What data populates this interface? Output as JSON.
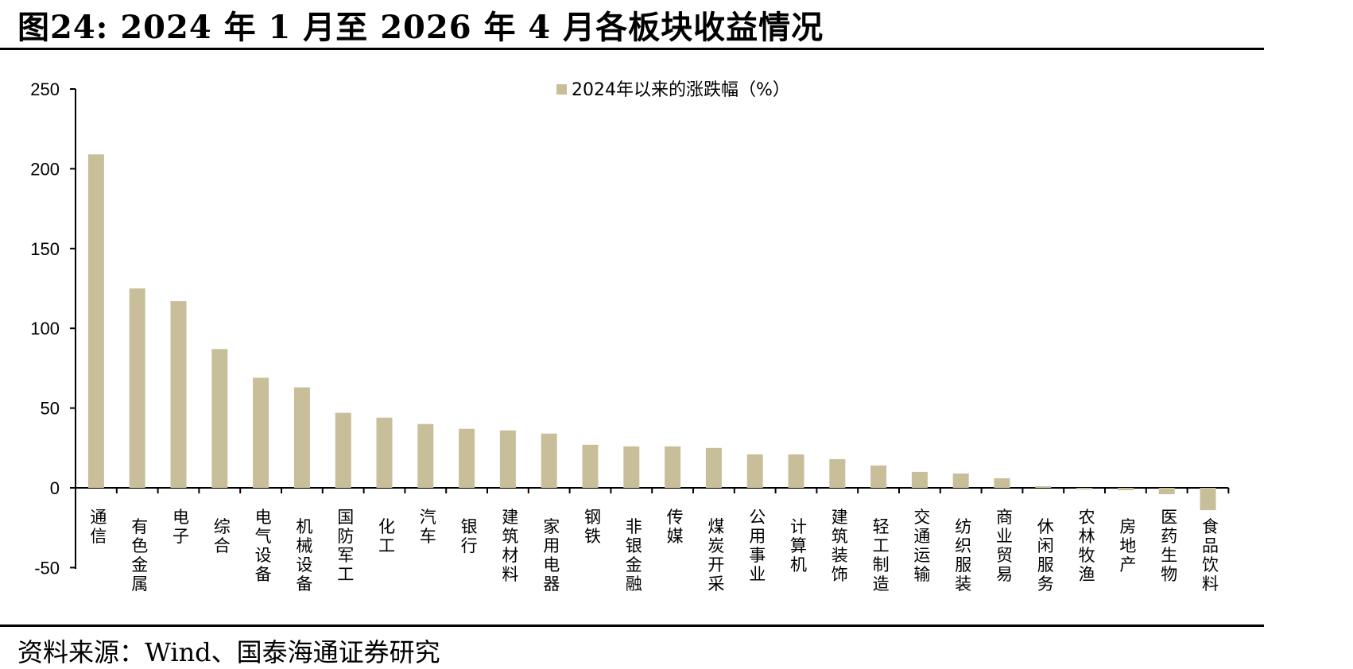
{
  "figure": {
    "title": "图24:  2024 年 1 月至 2026 年 4 月各板块收益情况",
    "source": "资料来源：Wind、国泰海通证券研究"
  },
  "chart_data": {
    "type": "bar",
    "title": "",
    "xlabel": "",
    "ylabel": "",
    "ylim": [
      -50,
      250
    ],
    "yticks": [
      -50,
      0,
      50,
      100,
      150,
      200,
      250
    ],
    "grid": false,
    "legend_position": "top-center",
    "bar_color": "#C8BE9A",
    "categories": [
      "通信",
      "有色金属",
      "电子",
      "综合",
      "电气设备",
      "机械设备",
      "国防军工",
      "化工",
      "汽车",
      "银行",
      "建筑材料",
      "家用电器",
      "钢铁",
      "非银金融",
      "传媒",
      "煤炭开采",
      "公用事业",
      "计算机",
      "建筑装饰",
      "轻工制造",
      "交通运输",
      "纺织服装",
      "商业贸易",
      "休闲服务",
      "农林牧渔",
      "房地产",
      "医药生物",
      "食品饮料"
    ],
    "series": [
      {
        "name": "2024年以来的涨跌幅（%）",
        "values": [
          209,
          125,
          117,
          87,
          69,
          63,
          47,
          44,
          40,
          37,
          36,
          34,
          27,
          26,
          26,
          25,
          21,
          21,
          18,
          14,
          10,
          9,
          6,
          0.5,
          -0.5,
          -1.5,
          -4,
          -14
        ]
      }
    ]
  }
}
